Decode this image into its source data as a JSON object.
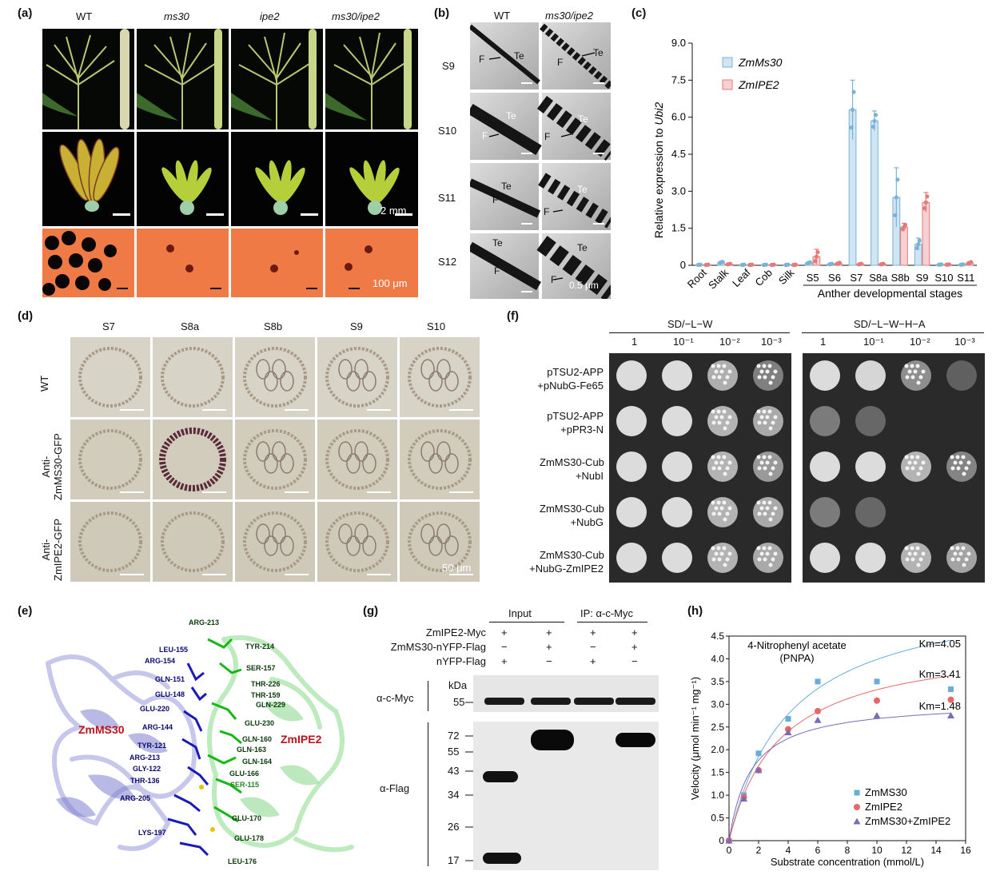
{
  "panels": {
    "a": {
      "label": "(a)",
      "cols": [
        "WT",
        "ms30",
        "ipe2",
        "ms30/ipe2"
      ],
      "scale_mid": "2 mm",
      "scale_bot": "100 μm"
    },
    "b": {
      "label": "(b)",
      "cols": [
        "WT",
        "ms30/ipe2"
      ],
      "rows": [
        "S9",
        "S10",
        "S11",
        "S12"
      ],
      "ann": {
        "f": "F",
        "te": "Te"
      },
      "scale": "0.5 μm"
    },
    "c": {
      "label": "(c)"
    },
    "d": {
      "label": "(d)",
      "cols": [
        "S7",
        "S8a",
        "S8b",
        "S9",
        "S10"
      ],
      "rows": [
        "WT",
        "Anti-\nZmMS30-GFP",
        "Anti-\nZmIPE2-GFP"
      ],
      "scale": "50 μm"
    },
    "e": {
      "label": "(e)",
      "left_name": "ZmMS30",
      "right_name": "ZmIPE2",
      "blue_res": [
        "LEU-155",
        "ARG-154",
        "GLN-151",
        "GLU-148",
        "GLU-220",
        "ARG-144",
        "TYR-121",
        "ARG-213",
        "GLY-122",
        "THR-136",
        "ARG-205",
        "LYS-197"
      ],
      "green_res": [
        "ARG-213",
        "TYR-214",
        "SER-157",
        "THR-226",
        "THR-159",
        "GLN-229",
        "GLU-230",
        "GLN-160",
        "GLN-163",
        "GLN-164",
        "GLU-166",
        "SER-115",
        "GLU-170",
        "GLU-178",
        "LEU-176"
      ]
    },
    "f": {
      "label": "(f)",
      "groups": [
        "SD/−L−W",
        "SD/−L−W−H−A"
      ],
      "dilutions": [
        "1",
        "10⁻¹",
        "10⁻²",
        "10⁻³"
      ],
      "rows": [
        [
          "pTSU2-APP",
          "+pNubG-Fe65"
        ],
        [
          "pTSU2-APP",
          "+pPR3-N"
        ],
        [
          "ZmMS30-Cub",
          "+NubI"
        ],
        [
          "ZmMS30-Cub",
          "+NubG"
        ],
        [
          "ZmMS30-Cub",
          "+NubG-ZmIPE2"
        ]
      ]
    },
    "g": {
      "label": "(g)",
      "input": "Input",
      "ip": "IP: α-c-Myc",
      "rows": [
        "ZmIPE2-Myc",
        "ZmMS30-nYFP-Flag",
        "nYFP-Flag"
      ],
      "signs": [
        [
          "+",
          "+",
          "+",
          "+"
        ],
        [
          "−",
          "+",
          "−",
          "+"
        ],
        [
          "+",
          "−",
          "+",
          "−"
        ]
      ],
      "kda": "kDa",
      "myc_label": "α-c-Myc",
      "flag_label": "α-Flag",
      "markers_top": [
        "55"
      ],
      "markers_bottom": [
        "72",
        "55",
        "43",
        "34",
        "26",
        "17"
      ]
    },
    "h": {
      "label": "(h)"
    }
  },
  "chart_data": [
    {
      "type": "bar",
      "panel": "c",
      "ylabel": "Relative expression to Ubi2",
      "xlabel": "Anther developmental stages",
      "ylim": [
        0,
        9.0
      ],
      "yticks": [
        "0",
        "1.5",
        "3.0",
        "4.5",
        "6.0",
        "7.5",
        "9.0"
      ],
      "categories": [
        "Root",
        "Stalk",
        "Leaf",
        "Cob",
        "Silk",
        "S5",
        "S6",
        "S7",
        "S8a",
        "S8b",
        "S9",
        "S10",
        "S11"
      ],
      "colors": {
        "ZmMs30": "#7ab3d6",
        "ZmIPE2": "#e47a7a"
      },
      "series": [
        {
          "name": "ZmMs30",
          "values": [
            0.02,
            0.12,
            0.02,
            0.02,
            0.02,
            0.1,
            0.05,
            6.3,
            5.85,
            2.75,
            0.85,
            0.03,
            0.03
          ],
          "errors": [
            0.01,
            0.03,
            0.01,
            0.01,
            0.01,
            0.04,
            0.02,
            1.2,
            0.4,
            1.2,
            0.25,
            0.01,
            0.01
          ]
        },
        {
          "name": "ZmIPE2",
          "values": [
            0.02,
            0.05,
            0.02,
            0.02,
            0.02,
            0.35,
            0.08,
            0.05,
            0.05,
            1.55,
            2.55,
            0.03,
            0.1
          ],
          "errors": [
            0.01,
            0.02,
            0.01,
            0.01,
            0.01,
            0.3,
            0.04,
            0.02,
            0.02,
            0.15,
            0.4,
            0.01,
            0.05
          ]
        }
      ]
    },
    {
      "type": "scatter",
      "panel": "h",
      "title": "4-Nitrophenyl acetate",
      "subtitle": "(PNPA)",
      "xlabel": "Substrate concentration (mmol/L)",
      "ylabel": "Velocity (μmol min⁻¹ mg⁻¹)",
      "xlim": [
        0,
        16
      ],
      "ylim": [
        0,
        4.5
      ],
      "xticks": [
        "0",
        "2",
        "4",
        "6",
        "8",
        "10",
        "12",
        "14",
        "16"
      ],
      "yticks": [
        "0",
        "0.5",
        "1.0",
        "1.5",
        "2.0",
        "2.5",
        "3.0",
        "3.5",
        "4.0",
        "4.5"
      ],
      "series": [
        {
          "name": "ZmMS30",
          "color": "#6aaed6",
          "marker": "square",
          "km": "Km=4.05",
          "vmax": 5.6,
          "km_value": 4.05,
          "x": [
            0,
            1,
            2,
            4,
            6,
            10,
            15
          ],
          "y": [
            0,
            1.0,
            1.92,
            2.68,
            3.5,
            3.5,
            3.33
          ]
        },
        {
          "name": "ZmIPE2",
          "color": "#e46868",
          "marker": "circle",
          "km": "Km=3.41",
          "vmax": 4.45,
          "km_value": 3.41,
          "x": [
            0,
            1,
            2,
            4,
            6,
            10,
            15
          ],
          "y": [
            0,
            0.95,
            1.55,
            2.45,
            2.85,
            3.08,
            3.1
          ]
        },
        {
          "name": "ZmMS30+ZmIPE2",
          "color": "#7a6bb8",
          "marker": "triangle",
          "km": "Km=1.48",
          "vmax": 3.08,
          "km_value": 1.48,
          "x": [
            0,
            1,
            2,
            4,
            6,
            10,
            15
          ],
          "y": [
            0,
            0.92,
            1.55,
            2.38,
            2.65,
            2.75,
            2.75
          ]
        }
      ]
    }
  ]
}
